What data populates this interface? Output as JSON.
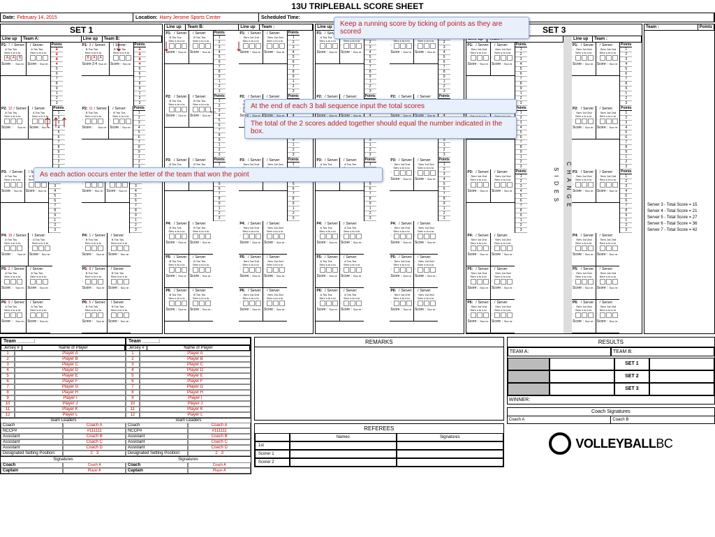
{
  "title": "13U TRIPLEBALL SCORE SHEET",
  "header": {
    "date_label": "Date:",
    "date_value": "February 14, 2015",
    "location_label": "Location:",
    "location_value": "Harry Jerome Sports Center",
    "sched_label": "Scheduled Time:"
  },
  "callouts": {
    "c1": "Keep a running score by ticking of points as they are scored",
    "c2": "At the end of each 3 ball sequence input the total scores",
    "c3": "The total of the 2 scores added together should equal the number indicated in the box.",
    "c4": "As each action occurs enter the letter of the team that won the point"
  },
  "sets": [
    "SET 1",
    "SET 3"
  ],
  "lineup": {
    "lineup": "Line up",
    "teamA": "Team A:",
    "teamB": "Team B:",
    "team": "Team :",
    "points": "Points"
  },
  "play_labels": {
    "server": "Server:",
    "a_tos": "A  Tos Tos",
    "b_tos": "B  Tos Tos",
    "serv_sto": "Serv s to  s to",
    "serv_1st_2nd": "Serv 1st  2nd",
    "e_tos": "e  Tos Tos",
    "score": "Score :",
    "sco_re": "Sco\nre :"
  },
  "p_labels": [
    "P1:",
    "P2:",
    "P3:",
    "P4:",
    "P5:",
    "P6:"
  ],
  "p_nums_a": [
    "7",
    "12",
    "",
    "10",
    "2",
    "9"
  ],
  "p_nums_b": [
    "3",
    "11",
    "",
    "1",
    "8",
    "5"
  ],
  "actions_a": [
    "A",
    "A",
    "B"
  ],
  "actions_b": [
    "B",
    "A",
    "A"
  ],
  "score24": "Score 2:4",
  "struck_points": [
    "1",
    "2",
    "3",
    "4",
    "5",
    "6",
    "7",
    "8",
    "9",
    "1",
    "1",
    "1",
    "2",
    "3",
    "4"
  ],
  "totals": [
    "Server 3 - Total Score = 15",
    "Server 4 - Total Score = 21",
    "Server 5 - Total Score = 27",
    "Server 6 - Total Score = 36",
    "Server 7 - Total Score = 42"
  ],
  "change_sides": "C H A N G E",
  "sides": "S I D E S",
  "roster": {
    "team_label": "Team ______:",
    "jersey": "Jersey #",
    "name": "Name of Player",
    "players": [
      [
        "1",
        "Player A"
      ],
      [
        "2",
        "Player B"
      ],
      [
        "3",
        "Player C"
      ],
      [
        "4",
        "Player D"
      ],
      [
        "5",
        "Player E"
      ],
      [
        "6",
        "Player F"
      ],
      [
        "7",
        "Player G"
      ],
      [
        "8",
        "Player H"
      ],
      [
        "9",
        "Player I"
      ],
      [
        "10",
        "Player J"
      ],
      [
        "11",
        "Player K"
      ],
      [
        "12",
        "Player L"
      ]
    ],
    "leaders_title": "Team Leaders",
    "leaders": [
      [
        "Coach",
        "Coach A"
      ],
      [
        "NCCP#",
        "#111111"
      ],
      [
        "Assistant",
        "Coach B"
      ],
      [
        "Assistant",
        "Coach C"
      ],
      [
        "Assistant",
        "Coach D"
      ]
    ],
    "dsp": "Designated Setting Position:",
    "dsp_vals": [
      "2",
      "3"
    ],
    "sigs": "Signatures",
    "coach": "Coach",
    "captain": "Captain",
    "coach_sig": "Coach A",
    "captain_sig": "Player A"
  },
  "remarks": {
    "title": "REMARKS"
  },
  "refs": {
    "title": "REFEREES",
    "names": "Names",
    "sigs": "Signatures",
    "rows": [
      "1st",
      "Scorer 1",
      "Scorer 2"
    ]
  },
  "results": {
    "title": "RESULTS",
    "teamA": "TEAM A:",
    "teamB": "TEAM B:",
    "sets": [
      "SET 1",
      "SET 2",
      "SET 3"
    ],
    "winner": "WINNER:",
    "coach_sigs": "Coach Signatures",
    "coachA": "Coach A",
    "coachB": "Coach B"
  },
  "logo": {
    "text1": "VOLLEYBALL",
    "text2": "BC"
  }
}
